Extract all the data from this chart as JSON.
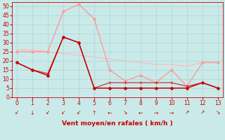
{
  "background_color": "#caeaea",
  "grid_color": "#b0d8d8",
  "xlabel": "Vent moyen/en rafales ( km/h )",
  "x_ticks": [
    0,
    1,
    2,
    3,
    4,
    5,
    6,
    7,
    8,
    9,
    10,
    11,
    12,
    13
  ],
  "ylim": [
    0,
    52
  ],
  "yticks": [
    0,
    5,
    10,
    15,
    20,
    25,
    30,
    35,
    40,
    45,
    50
  ],
  "line1_x": [
    0,
    1,
    2,
    3,
    4,
    5,
    6,
    7,
    8,
    9,
    10,
    11,
    12,
    13
  ],
  "line1_y": [
    19,
    15,
    12,
    33,
    30,
    5,
    5,
    5,
    5,
    5,
    5,
    5,
    8,
    5
  ],
  "line1_color": "#cc0000",
  "line2_x": [
    0,
    1,
    2,
    3,
    4,
    5,
    6,
    7,
    8,
    9,
    10,
    11,
    12,
    13
  ],
  "line2_y": [
    19,
    15,
    13,
    33,
    30,
    5,
    8,
    8,
    8,
    8,
    8,
    6,
    8,
    5
  ],
  "line2_color": "#cc3333",
  "line3_x": [
    0,
    1,
    2,
    3,
    4,
    5,
    6,
    7,
    8,
    9,
    10,
    11,
    12,
    13
  ],
  "line3_y": [
    25,
    25,
    25,
    47,
    51,
    43,
    15,
    9,
    12,
    8,
    15,
    6,
    19,
    19
  ],
  "line3_color": "#ff9999",
  "line4_x": [
    0,
    1,
    2,
    3,
    4,
    5,
    6,
    7,
    8,
    9,
    10,
    11,
    12,
    13
  ],
  "line4_y": [
    26,
    26,
    25,
    24,
    23,
    22,
    21,
    20,
    19,
    18,
    18,
    17,
    19,
    19
  ],
  "line4_color": "#ffbbbb",
  "arrow_symbols": [
    "↙",
    "↓",
    "↙",
    "↙",
    "↙",
    "↑",
    "←",
    "↘",
    "←",
    "→",
    "→",
    "↗",
    "↗",
    "↘"
  ],
  "tick_color": "#cc0000",
  "axis_color": "#cc0000",
  "label_color": "#cc0000"
}
